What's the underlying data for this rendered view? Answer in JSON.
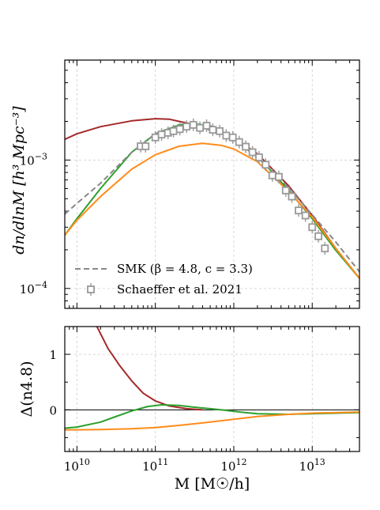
{
  "chart_data": [
    {
      "type": "line",
      "panel": "top",
      "xscale": "log",
      "yscale": "log",
      "xlim": [
        7000000000.0,
        40000000000000.0
      ],
      "ylim": [
        7e-05,
        0.006
      ],
      "ylabel": "dn/dlnM [h³ Mpc⁻³]",
      "y_ticks": [
        {
          "value": 0.001,
          "label": "10",
          "exp": "−3"
        },
        {
          "value": 0.0001,
          "label": "10",
          "exp": "−4"
        }
      ],
      "grid": true,
      "legend_position": "bottom-left",
      "series": [
        {
          "name": "SMK (β = 4.8, c = 3.3)",
          "color": "#888888",
          "dashed": true,
          "x": [
            7000000000.0,
            10000000000.0,
            20000000000.0,
            50000000000.0,
            100000000000.0,
            200000000000.0,
            400000000000.0,
            1000000000000.0,
            2000000000000.0,
            5000000000000.0,
            10000000000000.0,
            20000000000000.0,
            40000000000000.0
          ],
          "y": [
            0.00038,
            0.00046,
            0.00066,
            0.00115,
            0.0016,
            0.00185,
            0.0018,
            0.00145,
            0.00105,
            0.00061,
            0.000375,
            0.00023,
            0.000135
          ]
        },
        {
          "color": "#a52a2a",
          "x": [
            7000000000.0,
            10000000000.0,
            20000000000.0,
            50000000000.0,
            100000000000.0,
            150000000000.0,
            200000000000.0,
            300000000000.0,
            500000000000.0,
            1000000000000.0,
            2000000000000.0,
            5000000000000.0,
            10000000000000.0,
            20000000000000.0,
            40000000000000.0
          ],
          "y": [
            0.00145,
            0.0016,
            0.00182,
            0.00202,
            0.0021,
            0.00208,
            0.002,
            0.0019,
            0.00175,
            0.0015,
            0.00112,
            0.00063,
            0.00037,
            0.000205,
            0.00012
          ]
        },
        {
          "color": "#2ca02c",
          "x": [
            7000000000.0,
            10000000000.0,
            20000000000.0,
            50000000000.0,
            100000000000.0,
            200000000000.0,
            300000000000.0,
            500000000000.0,
            1000000000000.0,
            2000000000000.0,
            5000000000000.0,
            10000000000000.0,
            20000000000000.0,
            40000000000000.0
          ],
          "y": [
            0.00026,
            0.00035,
            0.0006,
            0.00115,
            0.0016,
            0.00188,
            0.00192,
            0.00185,
            0.0015,
            0.00108,
            0.00058,
            0.00035,
            0.000198,
            0.00012
          ]
        },
        {
          "color": "#ff8c1a",
          "x": [
            7000000000.0,
            10000000000.0,
            20000000000.0,
            50000000000.0,
            100000000000.0,
            200000000000.0,
            400000000000.0,
            700000000000.0,
            1000000000000.0,
            2000000000000.0,
            5000000000000.0,
            10000000000000.0,
            20000000000000.0,
            40000000000000.0
          ],
          "y": [
            0.00026,
            0.00034,
            0.00052,
            0.00085,
            0.0011,
            0.00128,
            0.00135,
            0.0013,
            0.00122,
            0.00097,
            0.00057,
            0.00036,
            0.000205,
            0.00012
          ]
        }
      ],
      "points": {
        "name": "Schaeffer et al. 2021",
        "color": "#999999",
        "marker": "open-square",
        "x": [
          65000000000.0,
          75000000000.0,
          100000000000.0,
          120000000000.0,
          145000000000.0,
          170000000000.0,
          205000000000.0,
          250000000000.0,
          305000000000.0,
          370000000000.0,
          450000000000.0,
          540000000000.0,
          660000000000.0,
          800000000000.0,
          970000000000.0,
          1170000000000.0,
          1420000000000.0,
          1730000000000.0,
          2100000000000.0,
          2550000000000.0,
          3100000000000.0,
          3750000000000.0,
          4600000000000.0,
          5500000000000.0,
          6700000000000.0,
          8200000000000.0,
          10000000000000.0,
          12000000000000.0,
          14500000000000.0
        ],
        "y": [
          0.00128,
          0.00128,
          0.0015,
          0.00158,
          0.00163,
          0.00168,
          0.00174,
          0.00182,
          0.00188,
          0.00178,
          0.00185,
          0.00172,
          0.00168,
          0.00155,
          0.0015,
          0.00138,
          0.00127,
          0.00115,
          0.00105,
          0.00092,
          0.00076,
          0.00074,
          0.00058,
          0.00052,
          0.000405,
          0.00037,
          0.0003,
          0.000255,
          0.000205
        ]
      }
    },
    {
      "type": "line",
      "panel": "bottom",
      "xscale": "log",
      "yscale": "linear",
      "xlim": [
        7000000000.0,
        40000000000000.0
      ],
      "ylim": [
        -0.75,
        1.5
      ],
      "ylabel": "Δ(n4.8)",
      "y_ticks": [
        {
          "value": 1,
          "label": "1"
        },
        {
          "value": 0,
          "label": "0"
        }
      ],
      "xlabel": "M [M☉/h]",
      "x_ticks": [
        {
          "value": 10000000000.0,
          "label": "10",
          "exp": "10"
        },
        {
          "value": 100000000000.0,
          "label": "10",
          "exp": "11"
        },
        {
          "value": 1000000000000.0,
          "label": "10",
          "exp": "12"
        },
        {
          "value": 10000000000000.0,
          "label": "10",
          "exp": "13"
        }
      ],
      "reference_line": 0,
      "grid": true,
      "series": [
        {
          "color": "#a52a2a",
          "x": [
            18000000000.0,
            25000000000.0,
            35000000000.0,
            50000000000.0,
            70000000000.0,
            100000000000.0,
            150000000000.0,
            250000000000.0,
            400000000000.0
          ],
          "y": [
            1.5,
            1.1,
            0.8,
            0.52,
            0.3,
            0.16,
            0.07,
            0.02,
            0.0
          ]
        },
        {
          "color": "#2ca02c",
          "x": [
            7000000000.0,
            10000000000.0,
            20000000000.0,
            30000000000.0,
            50000000000.0,
            80000000000.0,
            120000000000.0,
            200000000000.0,
            300000000000.0,
            500000000000.0,
            800000000000.0,
            1200000000000.0,
            2000000000000.0,
            5000000000000.0,
            10000000000000.0,
            40000000000000.0
          ],
          "y": [
            -0.33,
            -0.31,
            -0.22,
            -0.13,
            -0.02,
            0.06,
            0.09,
            0.08,
            0.05,
            0.02,
            -0.01,
            -0.04,
            -0.07,
            -0.08,
            -0.07,
            -0.05
          ]
        },
        {
          "color": "#ff8c1a",
          "x": [
            7000000000.0,
            10000000000.0,
            20000000000.0,
            50000000000.0,
            100000000000.0,
            200000000000.0,
            500000000000.0,
            1000000000000.0,
            2000000000000.0,
            5000000000000.0,
            10000000000000.0,
            40000000000000.0
          ],
          "y": [
            -0.36,
            -0.36,
            -0.355,
            -0.34,
            -0.32,
            -0.28,
            -0.22,
            -0.17,
            -0.12,
            -0.08,
            -0.06,
            -0.04
          ]
        }
      ]
    }
  ]
}
